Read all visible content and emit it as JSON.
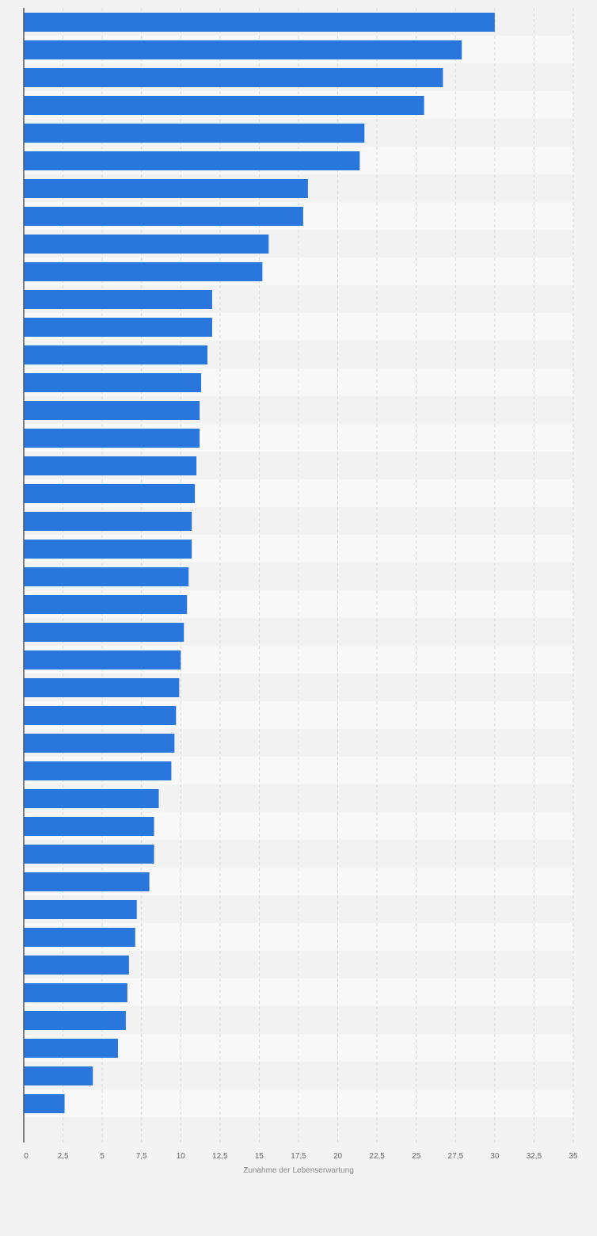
{
  "chart_data": {
    "type": "bar",
    "orientation": "horizontal",
    "xlabel": "Zunahme der Lebenserwartung",
    "xlim": [
      0,
      35
    ],
    "x_ticks": [
      "0",
      "2,5",
      "5",
      "7,5",
      "10",
      "12,5",
      "15",
      "17,5",
      "20",
      "22,5",
      "25",
      "27,5",
      "30",
      "32,5",
      "35"
    ],
    "grid": true,
    "bar_color": "#2977dd",
    "values": [
      30.0,
      27.9,
      26.7,
      25.5,
      21.7,
      21.4,
      18.1,
      17.8,
      15.6,
      15.2,
      12.0,
      12.0,
      11.7,
      11.3,
      11.2,
      11.2,
      11.0,
      10.9,
      10.7,
      10.7,
      10.5,
      10.4,
      10.2,
      10.0,
      9.9,
      9.7,
      9.6,
      9.4,
      8.6,
      8.3,
      8.3,
      8.0,
      7.2,
      7.1,
      6.7,
      6.6,
      6.5,
      6.0,
      4.4,
      2.6
    ]
  },
  "colors": {
    "bar": "#2977dd",
    "plot_band_light": "#f8f8f8",
    "plot_band_dark": "#f2f2f2",
    "page_background": "#f3f3f3",
    "grid": "#d8d8d8",
    "axis": "#555555"
  }
}
